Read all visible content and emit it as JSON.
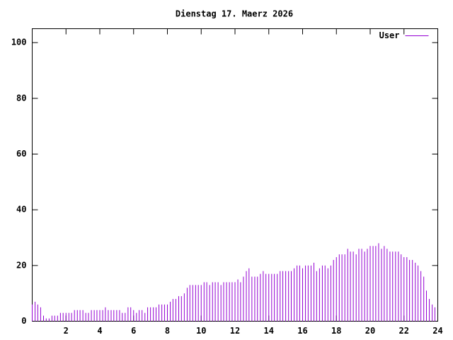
{
  "chart_data": {
    "type": "impulses",
    "title": "Dienstag 17. Maerz 2026",
    "x": [
      0,
      0.17,
      0.33,
      0.5,
      0.67,
      0.83,
      1,
      1.17,
      1.33,
      1.5,
      1.67,
      1.83,
      2,
      2.17,
      2.33,
      2.5,
      2.67,
      2.83,
      3,
      3.17,
      3.33,
      3.5,
      3.67,
      3.83,
      4,
      4.17,
      4.33,
      4.5,
      4.67,
      4.83,
      5,
      5.17,
      5.33,
      5.5,
      5.67,
      5.83,
      6,
      6.17,
      6.33,
      6.5,
      6.67,
      6.83,
      7,
      7.17,
      7.33,
      7.5,
      7.67,
      7.83,
      8,
      8.17,
      8.33,
      8.5,
      8.67,
      8.83,
      9,
      9.17,
      9.33,
      9.5,
      9.67,
      9.83,
      10,
      10.17,
      10.33,
      10.5,
      10.67,
      10.83,
      11,
      11.17,
      11.33,
      11.5,
      11.67,
      11.83,
      12,
      12.17,
      12.33,
      12.5,
      12.67,
      12.83,
      13,
      13.17,
      13.33,
      13.5,
      13.67,
      13.83,
      14,
      14.17,
      14.33,
      14.5,
      14.67,
      14.83,
      15,
      15.17,
      15.33,
      15.5,
      15.67,
      15.83,
      16,
      16.17,
      16.33,
      16.5,
      16.67,
      16.83,
      17,
      17.17,
      17.33,
      17.5,
      17.67,
      17.83,
      18,
      18.17,
      18.33,
      18.5,
      18.67,
      18.83,
      19,
      19.17,
      19.33,
      19.5,
      19.67,
      19.83,
      20,
      20.17,
      20.33,
      20.5,
      20.67,
      20.83,
      21,
      21.17,
      21.33,
      21.5,
      21.67,
      21.83,
      22,
      22.17,
      22.33,
      22.5,
      22.67,
      22.83,
      23,
      23.17,
      23.33,
      23.5,
      23.67,
      23.83
    ],
    "series": [
      {
        "name": "User",
        "color": "#9400d3",
        "values": [
          6,
          7,
          6,
          5,
          2,
          1,
          1,
          2,
          2,
          2,
          3,
          3,
          3,
          3,
          3,
          4,
          4,
          4,
          4,
          3,
          3,
          4,
          4,
          4,
          4,
          4,
          5,
          4,
          4,
          4,
          4,
          4,
          3,
          3,
          5,
          5,
          4,
          3,
          4,
          4,
          3,
          5,
          5,
          5,
          5,
          6,
          6,
          6,
          6,
          7,
          8,
          8,
          9,
          9,
          10,
          12,
          13,
          13,
          13,
          13,
          13,
          14,
          14,
          13,
          14,
          14,
          14,
          13,
          14,
          14,
          14,
          14,
          14,
          15,
          14,
          16,
          18,
          19,
          16,
          16,
          16,
          17,
          18,
          17,
          17,
          17,
          17,
          17,
          18,
          18,
          18,
          18,
          18,
          19,
          20,
          20,
          19,
          20,
          20,
          20,
          21,
          18,
          19,
          20,
          20,
          19,
          20,
          22,
          23,
          24,
          24,
          24,
          26,
          25,
          25,
          24,
          26,
          26,
          25,
          26,
          27,
          27,
          27,
          28,
          26,
          27,
          26,
          25,
          25,
          25,
          25,
          24,
          23,
          23,
          22,
          22,
          21,
          20,
          18,
          16,
          11,
          8,
          6,
          5
        ]
      }
    ],
    "xlim": [
      0,
      24
    ],
    "xticks": [
      2,
      4,
      6,
      8,
      10,
      12,
      14,
      16,
      18,
      20,
      22,
      24
    ],
    "ylim": [
      0,
      105
    ],
    "yticks": [
      0,
      20,
      40,
      60,
      80,
      100
    ],
    "legend": "top-right"
  }
}
